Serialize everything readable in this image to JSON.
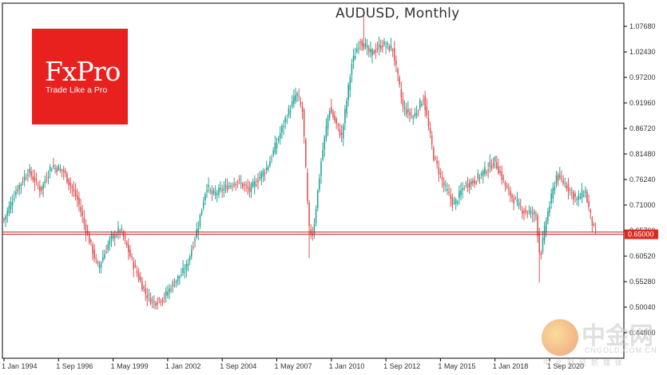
{
  "chart_data": {
    "type": "candlestick",
    "title": "AUDUSD, Monthly",
    "ylim": [
      0.465,
      1.1
    ],
    "y_ticks": [
      "1.07680",
      "1.02430",
      "0.97200",
      "0.91960",
      "0.86720",
      "0.81480",
      "0.76240",
      "0.71000",
      "0.65760",
      "0.60520",
      "0.55280",
      "0.50040",
      "0.44800"
    ],
    "x_ticks": [
      "1 Jan 1994",
      "1 Sep 1996",
      "1 May 1999",
      "1 Jan 2002",
      "1 Sep 2004",
      "1 May 2007",
      "1 Jan 2010",
      "1 Sep 2012",
      "1 May 2015",
      "1 Jan 2018",
      "1 Sep 2020"
    ],
    "current_price": "0.65000",
    "price_levels": [
      0.6545,
      0.65
    ],
    "colors": {
      "up": "#26a69a",
      "down": "#e05656",
      "level": "#c21f1f",
      "price_tag": "#e0281e",
      "grid": "#e4e4e4"
    },
    "anchors": [
      {
        "year": 1994.0,
        "price": 0.68
      },
      {
        "year": 1994.6,
        "price": 0.74
      },
      {
        "year": 1995.2,
        "price": 0.78
      },
      {
        "year": 1995.8,
        "price": 0.74
      },
      {
        "year": 1996.3,
        "price": 0.79
      },
      {
        "year": 1996.9,
        "price": 0.78
      },
      {
        "year": 1997.6,
        "price": 0.72
      },
      {
        "year": 1998.0,
        "price": 0.66
      },
      {
        "year": 1998.6,
        "price": 0.58
      },
      {
        "year": 1999.2,
        "price": 0.64
      },
      {
        "year": 1999.7,
        "price": 0.66
      },
      {
        "year": 2000.3,
        "price": 0.59
      },
      {
        "year": 2000.9,
        "price": 0.53
      },
      {
        "year": 2001.3,
        "price": 0.51
      },
      {
        "year": 2001.8,
        "price": 0.52
      },
      {
        "year": 2002.3,
        "price": 0.55
      },
      {
        "year": 2002.9,
        "price": 0.58
      },
      {
        "year": 2003.5,
        "price": 0.67
      },
      {
        "year": 2003.9,
        "price": 0.75
      },
      {
        "year": 2004.2,
        "price": 0.73
      },
      {
        "year": 2004.6,
        "price": 0.74
      },
      {
        "year": 2005.4,
        "price": 0.76
      },
      {
        "year": 2006.0,
        "price": 0.74
      },
      {
        "year": 2006.9,
        "price": 0.79
      },
      {
        "year": 2007.7,
        "price": 0.88
      },
      {
        "year": 2008.3,
        "price": 0.94
      },
      {
        "year": 2008.6,
        "price": 0.9
      },
      {
        "year": 2008.9,
        "price": 0.66
      },
      {
        "year": 2009.1,
        "price": 0.65
      },
      {
        "year": 2009.5,
        "price": 0.8
      },
      {
        "year": 2009.9,
        "price": 0.91
      },
      {
        "year": 2010.5,
        "price": 0.85
      },
      {
        "year": 2011.0,
        "price": 1.0
      },
      {
        "year": 2011.4,
        "price": 1.05
      },
      {
        "year": 2011.9,
        "price": 1.02
      },
      {
        "year": 2012.5,
        "price": 1.04
      },
      {
        "year": 2013.0,
        "price": 1.03
      },
      {
        "year": 2013.5,
        "price": 0.91
      },
      {
        "year": 2014.0,
        "price": 0.89
      },
      {
        "year": 2014.5,
        "price": 0.93
      },
      {
        "year": 2015.0,
        "price": 0.81
      },
      {
        "year": 2015.5,
        "price": 0.75
      },
      {
        "year": 2016.0,
        "price": 0.71
      },
      {
        "year": 2016.5,
        "price": 0.75
      },
      {
        "year": 2017.0,
        "price": 0.76
      },
      {
        "year": 2017.5,
        "price": 0.78
      },
      {
        "year": 2018.0,
        "price": 0.8
      },
      {
        "year": 2018.6,
        "price": 0.74
      },
      {
        "year": 2019.3,
        "price": 0.7
      },
      {
        "year": 2020.0,
        "price": 0.69
      },
      {
        "year": 2020.2,
        "price": 0.6
      },
      {
        "year": 2020.5,
        "price": 0.68
      },
      {
        "year": 2021.0,
        "price": 0.77
      },
      {
        "year": 2021.5,
        "price": 0.75
      },
      {
        "year": 2022.0,
        "price": 0.72
      },
      {
        "year": 2022.4,
        "price": 0.74
      },
      {
        "year": 2022.7,
        "price": 0.68
      },
      {
        "year": 2022.9,
        "price": 0.65
      }
    ],
    "wick_extremes": [
      {
        "year": 2008.95,
        "low": 0.601
      },
      {
        "year": 2020.2,
        "low": 0.551
      },
      {
        "year": 2011.55,
        "high": 1.108
      }
    ]
  },
  "logo": {
    "wordmark": "FxPro",
    "tagline": "Trade Like a Pro"
  },
  "watermark": {
    "cn": "中金网",
    "en": "CNGOLD.COM.CN",
    "sub": "中文财经新媒体"
  }
}
